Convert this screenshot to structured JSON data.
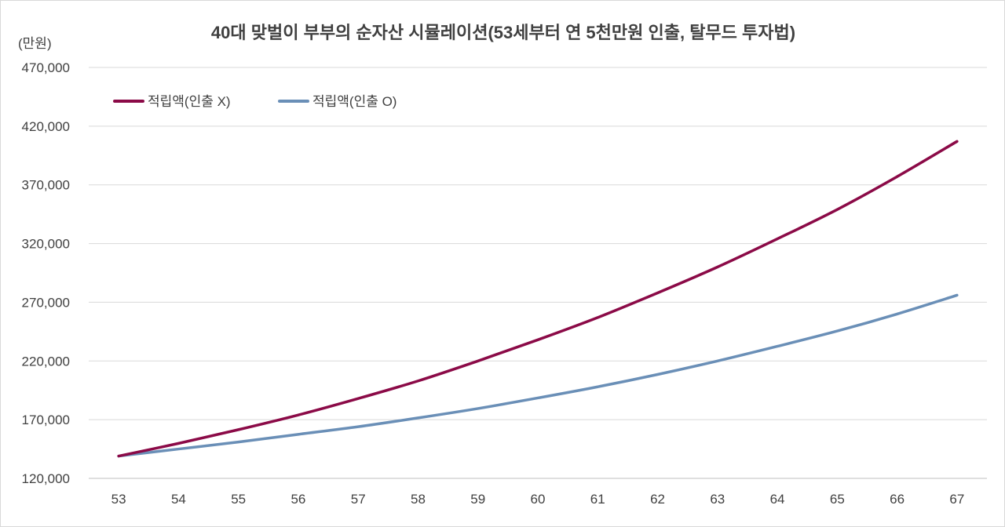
{
  "chart_data": {
    "type": "line",
    "title": "40대 맞벌이 부부의 순자산 시뮬레이션(53세부터 연 5천만원 인출, 탈무드 투자법)",
    "ylabel": "(만원)",
    "xlabel": "",
    "categories": [
      "53",
      "54",
      "55",
      "56",
      "57",
      "58",
      "59",
      "60",
      "61",
      "62",
      "63",
      "64",
      "65",
      "66",
      "67"
    ],
    "ylim": [
      120000,
      470000
    ],
    "yticks": [
      120000,
      170000,
      220000,
      270000,
      320000,
      370000,
      420000,
      470000
    ],
    "ytick_labels": [
      "120,000",
      "170,000",
      "220,000",
      "270,000",
      "320,000",
      "370,000",
      "420,000",
      "470,000"
    ],
    "grid": true,
    "legend_position": "top-left",
    "series": [
      {
        "name": "적립액(인출 X)",
        "color": "#8B0A47",
        "values": [
          139000,
          149800,
          161500,
          174000,
          188000,
          203000,
          220000,
          238000,
          257000,
          278000,
          300000,
          324000,
          349000,
          377000,
          407000
        ]
      },
      {
        "name": "적립액(인출 O)",
        "color": "#6A8FB7",
        "values": [
          139000,
          145000,
          151000,
          157500,
          164000,
          171500,
          179500,
          188500,
          198000,
          208500,
          220000,
          232500,
          245500,
          260000,
          276000
        ]
      }
    ]
  }
}
